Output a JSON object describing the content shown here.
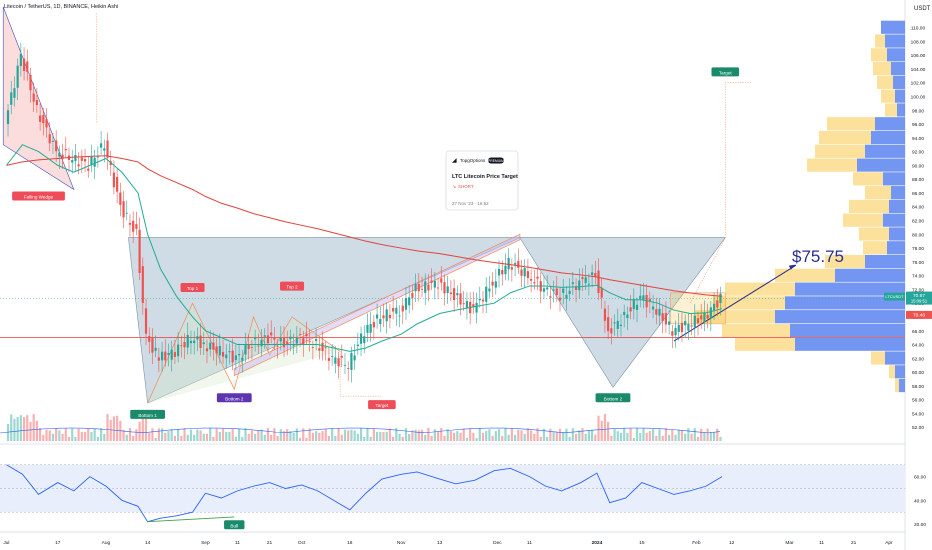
{
  "header": {
    "symbol_line": "Litecoin / TetherUS, 1D, BINANCE, Heikin Ashi",
    "currency": "USDT"
  },
  "colors": {
    "up": "#26a69a",
    "down": "#ef5350",
    "ema_short": "#22ab94",
    "ema_long": "#e0443c",
    "triangle_fill": "#a8bfcf",
    "wedge_fill": "#f9c7c7",
    "volume_profile_blue": "#5b84f0",
    "volume_profile_yellow": "#f7c948",
    "rsi_line": "#2962ff",
    "rsi_band": "#e8eefc",
    "label_red": "#ef4c5a",
    "label_green": "#1a8a6a",
    "label_purple": "#5e35b1"
  },
  "chart_data": {
    "type": "line",
    "title": "Litecoin / TetherUS, 1D, BINANCE, Heikin Ashi",
    "ylim": [
      50,
      114
    ],
    "y_ticks": [
      52,
      54,
      56,
      58,
      60,
      62,
      64,
      66,
      68,
      70,
      72,
      74,
      76,
      78,
      80,
      82,
      84,
      86,
      88,
      90,
      92,
      94,
      96,
      98,
      100,
      102,
      104,
      106,
      108,
      110
    ],
    "x_ticks": [
      "Jul",
      "17",
      "Aug",
      "14",
      "Sep",
      "11",
      "21",
      "Oct",
      "16",
      "Nov",
      "13",
      "Dec",
      "11",
      "2024",
      "15",
      "Feb",
      "12",
      "Mar",
      "11",
      "21",
      "Apr"
    ],
    "price_series": {
      "name": "LTCUSDT",
      "x": [
        "2023-07-01",
        "2023-07-06",
        "2023-07-11",
        "2023-07-17",
        "2023-07-22",
        "2023-07-27",
        "2023-08-01",
        "2023-08-06",
        "2023-08-11",
        "2023-08-14",
        "2023-08-18",
        "2023-08-23",
        "2023-08-28",
        "2023-09-01",
        "2023-09-06",
        "2023-09-11",
        "2023-09-16",
        "2023-09-21",
        "2023-09-26",
        "2023-10-01",
        "2023-10-06",
        "2023-10-11",
        "2023-10-16",
        "2023-10-21",
        "2023-10-26",
        "2023-11-01",
        "2023-11-06",
        "2023-11-13",
        "2023-11-18",
        "2023-11-24",
        "2023-11-30",
        "2023-12-05",
        "2023-12-11",
        "2023-12-16",
        "2023-12-21",
        "2023-12-27",
        "2024-01-01",
        "2024-01-05",
        "2024-01-10",
        "2024-01-15",
        "2024-01-20",
        "2024-01-25",
        "2024-01-30",
        "2024-02-04",
        "2024-02-09"
      ],
      "values": [
        96,
        106,
        98,
        92,
        91,
        90,
        93,
        84,
        80,
        65,
        62,
        63,
        65,
        64,
        63,
        62,
        64,
        65,
        64,
        65,
        64,
        62,
        61,
        66,
        68,
        69,
        72,
        73,
        71,
        69,
        73,
        76,
        74,
        72,
        71,
        73,
        74,
        66,
        68,
        71,
        69,
        66,
        67,
        68,
        70.67
      ]
    },
    "ema_short": [
      90,
      93,
      92,
      90,
      89,
      90,
      91,
      89,
      86,
      80,
      75,
      71,
      68,
      66,
      65,
      64,
      64,
      64,
      64,
      64,
      64,
      63.5,
      63,
      63.5,
      64.5,
      65.5,
      67,
      68.5,
      69,
      69.5,
      70,
      71.5,
      72.5,
      72.5,
      72.3,
      72.4,
      72.6,
      71.5,
      70.5,
      70.5,
      70,
      69,
      68.5,
      68.6,
      69.2
    ],
    "ema_long": [
      90,
      90.5,
      90.8,
      91,
      91.2,
      91.3,
      91.4,
      91,
      90.5,
      89.5,
      88.5,
      87.5,
      86.5,
      85.5,
      84.5,
      83.8,
      83,
      82.4,
      81.8,
      81.3,
      80.8,
      80.2,
      79.6,
      79,
      78.5,
      78,
      77.6,
      77.2,
      76.8,
      76.3,
      75.9,
      75.6,
      75.2,
      74.8,
      74.4,
      74.1,
      73.8,
      73.4,
      73,
      72.6,
      72.2,
      71.8,
      71.5,
      71.2,
      71
    ],
    "rsi": {
      "ylim": [
        15,
        85
      ],
      "ticks": [
        20,
        40,
        60
      ],
      "band": [
        30,
        70
      ],
      "values": [
        70,
        62,
        45,
        55,
        48,
        60,
        52,
        40,
        35,
        22,
        25,
        27,
        30,
        46,
        42,
        48,
        52,
        55,
        50,
        53,
        48,
        40,
        32,
        46,
        58,
        62,
        64,
        58,
        54,
        57,
        65,
        67,
        60,
        52,
        48,
        55,
        63,
        38,
        42,
        55,
        50,
        45,
        48,
        52,
        60
      ]
    },
    "levels": {
      "triangle_top": 79.5,
      "resistance_red": 65.0,
      "current_price": 70.67
    },
    "legend": "top-right"
  },
  "annotations": {
    "falling_wedge": "Falling Wedge",
    "top1": "Top 1",
    "top2": "Top 2",
    "target_low": "Target",
    "target_high": "Target",
    "bottom1": "Bottom 1",
    "bottom2_mid": "Bottom 2",
    "bottom2_right": "Bottom 2",
    "bull": "Bull",
    "price_target_big": "$75.75"
  },
  "price_tags": {
    "ltcusdt_label": "LTCUSDT",
    "price": "70.67",
    "countdown": "15:09:51",
    "price2": "70.46",
    "rsi_tag": "60.00"
  },
  "idea_card": {
    "brand": "TopgOptions",
    "badge": "PREMIUM",
    "title": "LTC Litecoin Price Target",
    "direction": "SHORT",
    "timestamp": "27 Nov '23 · 16:52"
  }
}
